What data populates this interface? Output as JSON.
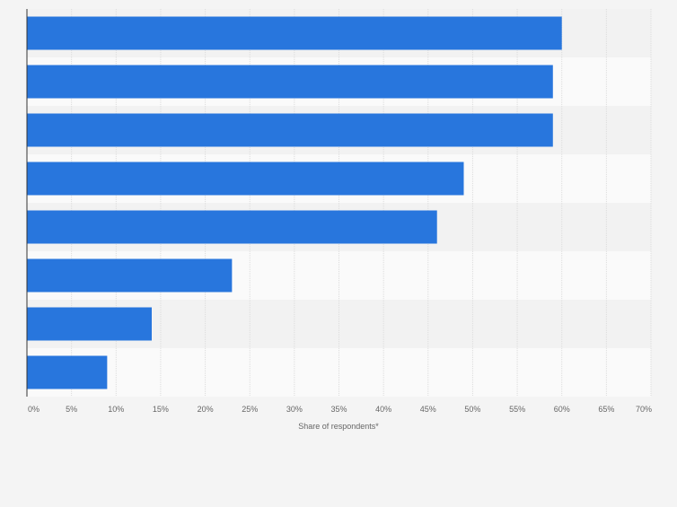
{
  "chart_data": {
    "type": "bar",
    "orientation": "horizontal",
    "categories": [
      "",
      "",
      "",
      "",
      "",
      "",
      "",
      ""
    ],
    "values": [
      60,
      59,
      59,
      49,
      46,
      23,
      14,
      9
    ],
    "xlabel": "Share of respondents*",
    "ylabel": "",
    "xlim": [
      0,
      70
    ],
    "ticks": [
      0,
      5,
      10,
      15,
      20,
      25,
      30,
      35,
      40,
      45,
      50,
      55,
      60,
      65,
      70
    ],
    "tick_labels": [
      "0%",
      "5%",
      "10%",
      "15%",
      "20%",
      "25%",
      "30%",
      "35%",
      "40%",
      "45%",
      "50%",
      "55%",
      "60%",
      "65%",
      "70%"
    ],
    "grid": true,
    "legend": "none",
    "colors": {
      "bar": "#2876dd",
      "band_dark": "#f2f2f2",
      "band_light": "#fafafa",
      "grid": "#dcdcdc",
      "axis": "#333333",
      "text": "#666666"
    }
  }
}
